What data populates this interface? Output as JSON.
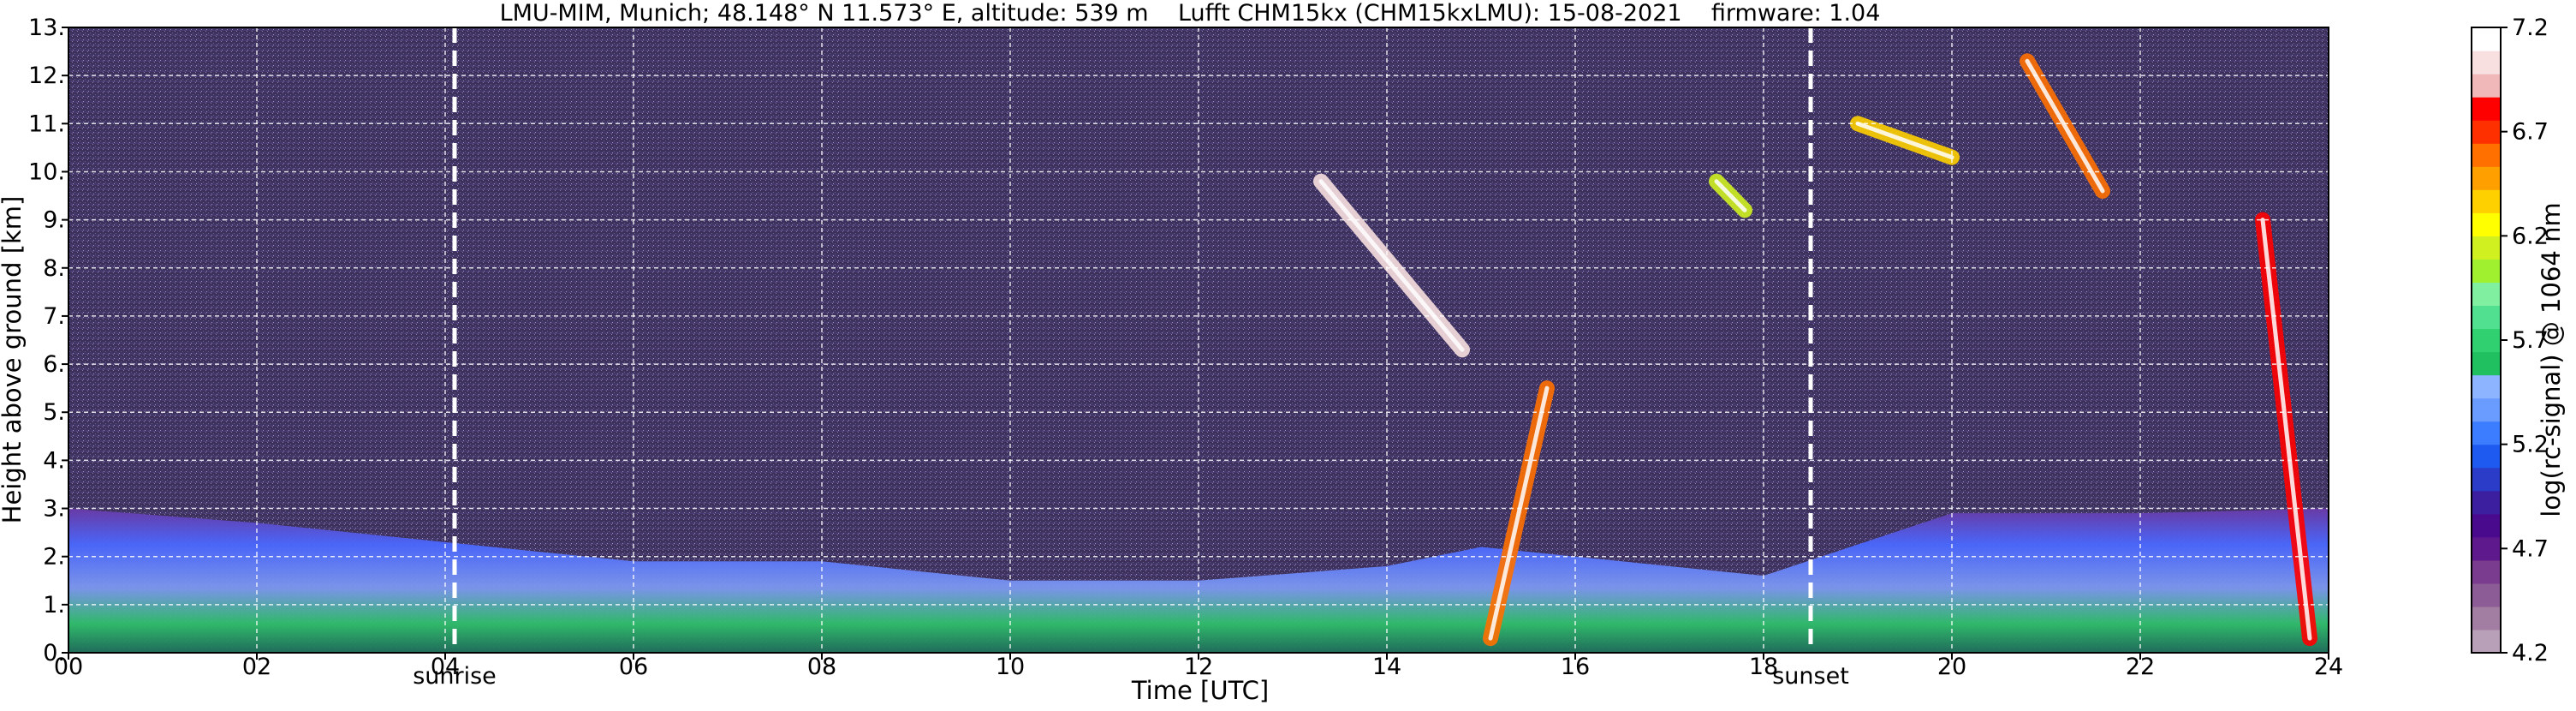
{
  "chart_data": {
    "type": "heatmap",
    "title": "LMU-MIM, Munich; 48.148° N 11.573° E, altitude: 539 m    Lufft CHM15kx (CHM15kxLMU): 15-08-2021    firmware: 1.04",
    "xlabel": "Time [UTC]",
    "ylabel": "Height above ground [km]",
    "xlim": [
      0,
      24
    ],
    "ylim": [
      0,
      13
    ],
    "x_ticks": [
      "00",
      "02",
      "04",
      "06",
      "08",
      "10",
      "12",
      "14",
      "16",
      "18",
      "20",
      "22",
      "24"
    ],
    "y_ticks": [
      "0.",
      "1.",
      "2.",
      "3.",
      "4.",
      "5.",
      "6.",
      "7.",
      "8.",
      "9.",
      "10.",
      "11.",
      "12.",
      "13."
    ],
    "grid": true,
    "colorbar": {
      "label": "log(rc-signal) @ 1064 nm",
      "range": [
        4.2,
        7.2
      ],
      "ticks": [
        "4.2",
        "4.7",
        "5.2",
        "5.7",
        "6.2",
        "6.7",
        "7.2"
      ],
      "colors": [
        "#b8a0b8",
        "#a27ea2",
        "#8c5c96",
        "#7a3c8e",
        "#5e1a8c",
        "#4a0a8e",
        "#3c1f9e",
        "#2a3cc8",
        "#1f5af0",
        "#3c7dff",
        "#6a9cff",
        "#8cb4ff",
        "#20c060",
        "#30d070",
        "#50e090",
        "#80f0a0",
        "#a0f030",
        "#d0f020",
        "#ffff00",
        "#ffd000",
        "#ffa000",
        "#ff7000",
        "#ff3000",
        "#ff0000",
        "#f0b8b8",
        "#f8e0e0",
        "#ffffff"
      ]
    },
    "markers": [
      {
        "label": "sunrise",
        "x": 4.1
      },
      {
        "label": "sunset",
        "x": 18.5
      }
    ],
    "boundary_layer_top_km": [
      {
        "x": 0,
        "y": 3.0
      },
      {
        "x": 2,
        "y": 2.7
      },
      {
        "x": 4,
        "y": 2.3
      },
      {
        "x": 6,
        "y": 1.9
      },
      {
        "x": 8,
        "y": 1.9
      },
      {
        "x": 10,
        "y": 1.5
      },
      {
        "x": 12,
        "y": 1.5
      },
      {
        "x": 14,
        "y": 1.8
      },
      {
        "x": 15,
        "y": 2.2
      },
      {
        "x": 16,
        "y": 2.0
      },
      {
        "x": 18,
        "y": 1.6
      },
      {
        "x": 20,
        "y": 2.9
      },
      {
        "x": 22,
        "y": 2.9
      },
      {
        "x": 24,
        "y": 3.0
      }
    ],
    "cloud_features": [
      {
        "t_start": 13.3,
        "t_end": 14.8,
        "h_start": 9.8,
        "h_end": 6.3,
        "level": 7.0
      },
      {
        "t_start": 15.1,
        "t_end": 15.7,
        "h_start": 0.3,
        "h_end": 5.5,
        "level": 6.6
      },
      {
        "t_start": 19.0,
        "t_end": 20.0,
        "h_start": 11.0,
        "h_end": 10.3,
        "level": 6.4
      },
      {
        "t_start": 20.8,
        "t_end": 21.6,
        "h_start": 12.3,
        "h_end": 9.6,
        "level": 6.6
      },
      {
        "t_start": 23.3,
        "t_end": 23.8,
        "h_start": 9.0,
        "h_end": 0.3,
        "level": 6.8
      },
      {
        "t_start": 17.5,
        "t_end": 17.8,
        "h_start": 9.8,
        "h_end": 9.2,
        "level": 6.1
      }
    ]
  }
}
